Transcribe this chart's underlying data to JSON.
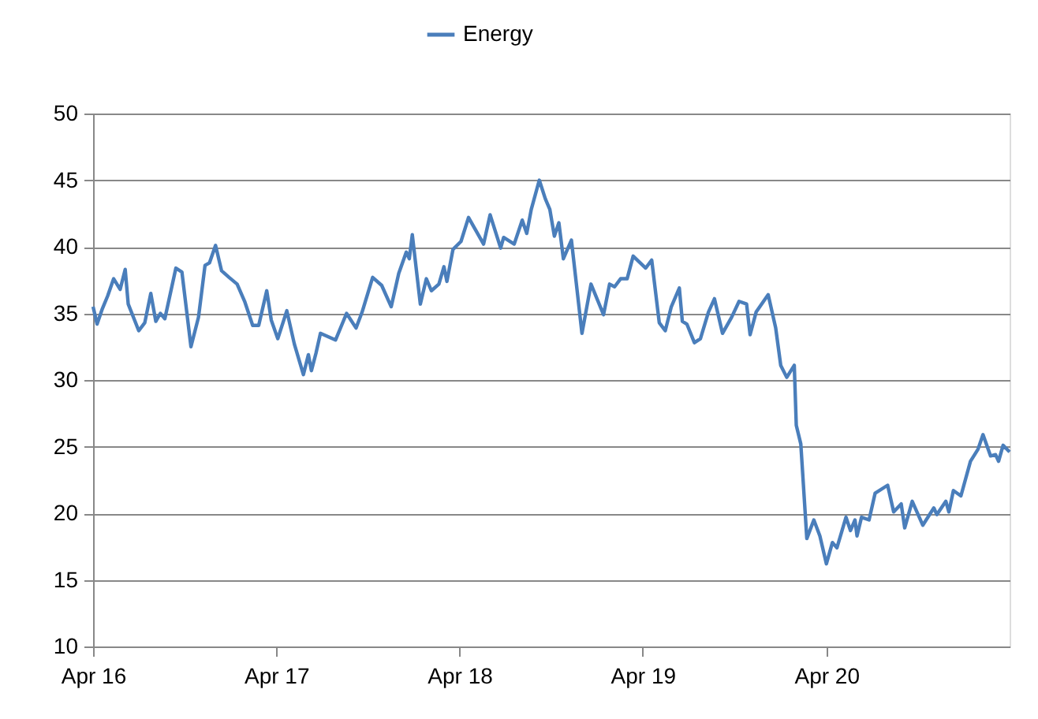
{
  "chart_data": {
    "type": "line",
    "x": [
      "2016-04-01",
      "2016-04-09",
      "2016-04-19",
      "2016-04-30",
      "2016-05-12",
      "2016-05-25",
      "2016-06-04",
      "2016-06-10",
      "2016-07-01",
      "2016-07-13",
      "2016-07-25",
      "2016-08-04",
      "2016-08-13",
      "2016-08-22",
      "2016-09-13",
      "2016-09-25",
      "2016-10-13",
      "2016-10-28",
      "2016-11-10",
      "2016-11-19",
      "2016-12-01",
      "2016-12-13",
      "2016-12-28",
      "2017-01-13",
      "2017-01-28",
      "2017-02-13",
      "2017-02-25",
      "2017-03-13",
      "2017-03-22",
      "2017-04-04",
      "2017-04-22",
      "2017-05-07",
      "2017-05-25",
      "2017-06-04",
      "2017-06-10",
      "2017-06-19",
      "2017-06-28",
      "2017-07-28",
      "2017-08-19",
      "2017-09-07",
      "2017-09-19",
      "2017-10-10",
      "2017-10-28",
      "2017-11-16",
      "2017-12-01",
      "2017-12-16",
      "2017-12-22",
      "2017-12-28",
      "2018-01-13",
      "2018-01-25",
      "2018-02-04",
      "2018-02-19",
      "2018-03-01",
      "2018-03-07",
      "2018-03-19",
      "2018-04-04",
      "2018-04-19",
      "2018-05-19",
      "2018-06-01",
      "2018-06-22",
      "2018-06-28",
      "2018-07-19",
      "2018-08-04",
      "2018-08-13",
      "2018-08-22",
      "2018-09-07",
      "2018-09-19",
      "2018-09-28",
      "2018-10-07",
      "2018-10-16",
      "2018-10-25",
      "2018-11-10",
      "2018-12-01",
      "2018-12-19",
      "2019-01-13",
      "2019-01-25",
      "2019-02-04",
      "2019-02-16",
      "2019-03-01",
      "2019-03-13",
      "2019-04-07",
      "2019-04-19",
      "2019-05-04",
      "2019-05-16",
      "2019-05-28",
      "2019-06-13",
      "2019-06-19",
      "2019-06-28",
      "2019-07-13",
      "2019-07-25",
      "2019-08-10",
      "2019-08-22",
      "2019-09-07",
      "2019-09-25",
      "2019-10-10",
      "2019-10-25",
      "2019-11-01",
      "2019-11-13",
      "2019-12-07",
      "2019-12-22",
      "2020-01-01",
      "2020-01-13",
      "2020-01-28",
      "2020-02-01",
      "2020-02-10",
      "2020-02-22",
      "2020-03-07",
      "2020-03-19",
      "2020-04-01",
      "2020-04-13",
      "2020-04-22",
      "2020-05-10",
      "2020-05-19",
      "2020-05-28",
      "2020-06-01",
      "2020-06-10",
      "2020-06-25",
      "2020-07-07",
      "2020-08-01",
      "2020-08-13",
      "2020-08-28",
      "2020-09-04",
      "2020-09-19",
      "2020-10-10",
      "2020-11-01",
      "2020-11-07",
      "2020-11-25",
      "2020-12-01",
      "2020-12-10",
      "2020-12-25",
      "2021-01-13",
      "2021-01-28",
      "2021-02-07",
      "2021-02-22",
      "2021-03-04",
      "2021-03-10",
      "2021-03-19",
      "2021-04-01"
    ],
    "series": [
      {
        "name": "Energy",
        "color": "#4a7ebb",
        "values": [
          35.5,
          34.2,
          35.3,
          36.3,
          37.6,
          36.8,
          38.3,
          35.7,
          33.7,
          34.3,
          36.5,
          34.4,
          35.0,
          34.6,
          38.4,
          38.1,
          32.5,
          34.7,
          38.6,
          38.8,
          40.1,
          38.2,
          37.7,
          37.2,
          35.9,
          34.1,
          34.1,
          36.7,
          34.5,
          33.1,
          35.2,
          32.7,
          30.4,
          31.9,
          30.7,
          32.0,
          33.5,
          33.0,
          35.0,
          33.9,
          35.1,
          37.7,
          37.1,
          35.5,
          38.0,
          39.6,
          39.1,
          40.9,
          35.7,
          37.6,
          36.7,
          37.2,
          38.5,
          37.4,
          39.8,
          40.4,
          42.2,
          40.2,
          42.4,
          39.9,
          40.7,
          40.2,
          42.0,
          41.0,
          42.8,
          45.0,
          43.6,
          42.8,
          40.8,
          41.8,
          39.1,
          40.5,
          33.5,
          37.2,
          34.9,
          37.2,
          37.0,
          37.6,
          37.6,
          39.3,
          38.4,
          39.0,
          34.3,
          33.7,
          35.5,
          36.9,
          34.4,
          34.2,
          32.8,
          33.1,
          35.1,
          36.1,
          33.5,
          34.7,
          35.9,
          35.7,
          33.4,
          35.1,
          36.4,
          33.9,
          31.1,
          30.2,
          31.1,
          26.6,
          25.2,
          18.1,
          19.5,
          18.3,
          16.2,
          17.8,
          17.4,
          19.7,
          18.7,
          19.5,
          18.3,
          19.7,
          19.5,
          21.5,
          22.1,
          20.1,
          20.7,
          18.9,
          20.9,
          19.1,
          20.4,
          19.9,
          20.9,
          20.1,
          21.7,
          21.3,
          23.9,
          24.8,
          25.9,
          24.3,
          24.4,
          23.9,
          25.1,
          24.6
        ]
      }
    ],
    "xlim": [
      "2016-04-01",
      "2021-04-01"
    ],
    "xticks": [
      {
        "value": "2016-04-01",
        "label": "Apr 16"
      },
      {
        "value": "2017-04-01",
        "label": "Apr 17"
      },
      {
        "value": "2018-04-01",
        "label": "Apr 18"
      },
      {
        "value": "2019-04-01",
        "label": "Apr 19"
      },
      {
        "value": "2020-04-01",
        "label": "Apr 20"
      }
    ],
    "ylim": [
      10,
      50
    ],
    "yticks": [
      10,
      15,
      20,
      25,
      30,
      35,
      40,
      45,
      50
    ],
    "grid": "y",
    "legend": "top",
    "marker": "none",
    "line_style": "solid"
  }
}
